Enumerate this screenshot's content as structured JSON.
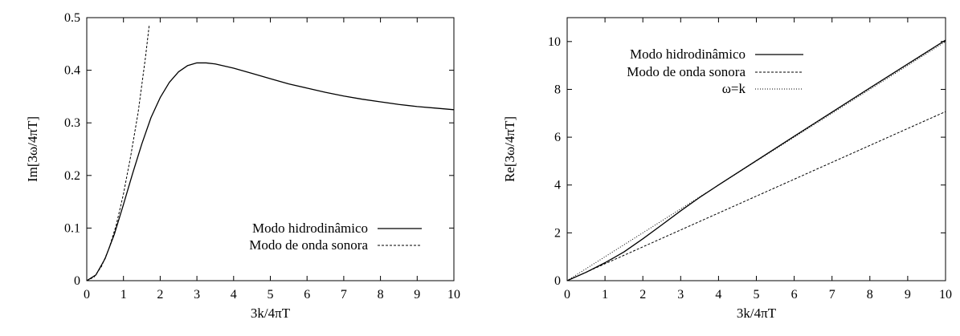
{
  "chart_data": [
    {
      "type": "line",
      "xlabel": "3k/4πT",
      "ylabel": "Im[3ω/4πT]",
      "xlim": [
        0,
        10
      ],
      "ylim": [
        0,
        0.5
      ],
      "xticks": [
        "0",
        "1",
        "2",
        "3",
        "4",
        "5",
        "6",
        "7",
        "8",
        "9",
        "10"
      ],
      "yticks": [
        "0",
        "0.1",
        "0.2",
        "0.3",
        "0.4",
        "0.5"
      ],
      "legend_position": "bottom-right",
      "grid": false,
      "series": [
        {
          "name": "Modo hidrodinâmico",
          "style": "solid",
          "x": [
            0,
            0.25,
            0.5,
            0.75,
            1,
            1.25,
            1.5,
            1.75,
            2,
            2.25,
            2.5,
            2.75,
            3,
            3.25,
            3.5,
            4,
            4.5,
            5,
            5.5,
            6,
            6.5,
            7,
            7.5,
            8,
            8.5,
            9,
            9.5,
            10
          ],
          "y": [
            0,
            0.011,
            0.042,
            0.088,
            0.145,
            0.204,
            0.26,
            0.31,
            0.348,
            0.377,
            0.397,
            0.409,
            0.414,
            0.414,
            0.412,
            0.404,
            0.394,
            0.384,
            0.374,
            0.366,
            0.358,
            0.351,
            0.345,
            0.34,
            0.335,
            0.331,
            0.328,
            0.325
          ]
        },
        {
          "name": "Modo de onda sonora",
          "style": "dashed",
          "x": [
            0,
            0.2,
            0.4,
            0.6,
            0.8,
            1,
            1.2,
            1.4,
            1.6,
            1.7
          ],
          "y": [
            0,
            0.007,
            0.027,
            0.06,
            0.105,
            0.165,
            0.238,
            0.32,
            0.425,
            0.485
          ]
        }
      ]
    },
    {
      "type": "line",
      "xlabel": "3k/4πT",
      "ylabel": "Re[3ω/4πT]",
      "xlim": [
        0,
        10
      ],
      "ylim": [
        0,
        11
      ],
      "xticks": [
        "0",
        "1",
        "2",
        "3",
        "4",
        "5",
        "6",
        "7",
        "8",
        "9",
        "10"
      ],
      "yticks": [
        "0",
        "2",
        "4",
        "6",
        "8",
        "10"
      ],
      "legend_position": "top-left",
      "grid": false,
      "series": [
        {
          "name": "Modo hidrodinâmico",
          "style": "solid",
          "x": [
            0,
            0.5,
            1,
            1.5,
            2,
            2.5,
            3,
            3.5,
            4,
            5,
            6,
            7,
            8,
            9,
            10
          ],
          "y": [
            0,
            0.35,
            0.75,
            1.2,
            1.75,
            2.33,
            2.92,
            3.48,
            4.0,
            5.02,
            6.04,
            7.05,
            8.06,
            9.06,
            10.06
          ]
        },
        {
          "name": "Modo de onda sonora",
          "style": "dashed",
          "x": [
            0,
            10
          ],
          "y": [
            0,
            7.07
          ]
        },
        {
          "name": "ω=k",
          "style": "dotted",
          "x": [
            0,
            10
          ],
          "y": [
            0,
            10
          ]
        }
      ]
    }
  ]
}
